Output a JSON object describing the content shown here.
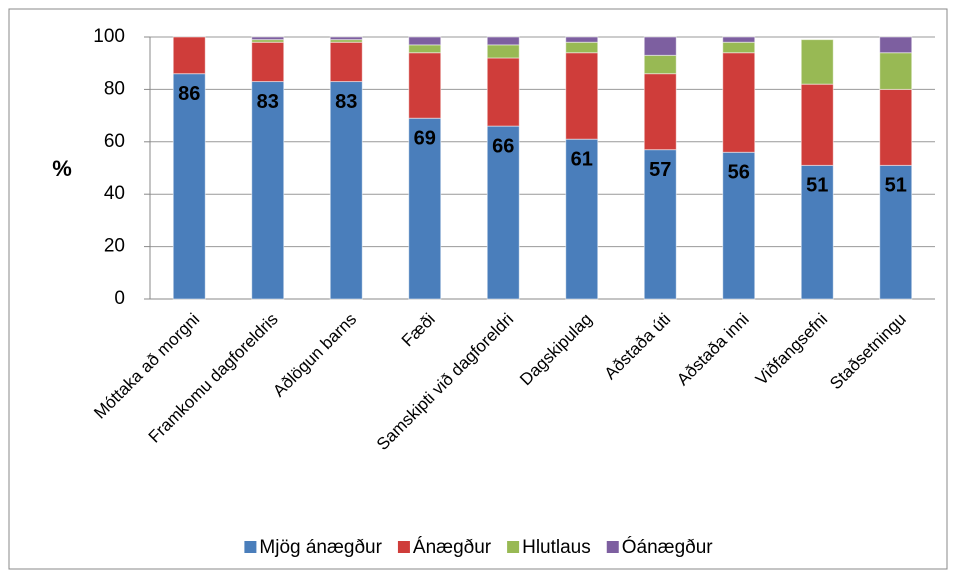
{
  "chart_data": {
    "type": "stacked_bar",
    "y_label": "%",
    "categories": [
      "Móttaka að morgni",
      "Framkomu dagforeldris",
      "Aðlögun barns",
      "Fæði",
      "Samskipti við dagforeldri",
      "Dagskipulag",
      "Aðstaða úti",
      "Aðstaða inni",
      "Viðfangsefni",
      "Staðsetningu"
    ],
    "series": [
      {
        "name": "Mjög ánægður",
        "color": "#4a7ebb",
        "values": [
          86,
          83,
          83,
          69,
          66,
          61,
          57,
          56,
          51,
          51
        ]
      },
      {
        "name": "Ánægður",
        "color": "#cf3d3a",
        "values": [
          14,
          15,
          15,
          25,
          26,
          33,
          29,
          38,
          31,
          29
        ]
      },
      {
        "name": "Hlutlaus",
        "color": "#98b954",
        "values": [
          0,
          1,
          1,
          3,
          5,
          4,
          7,
          4,
          17,
          14
        ]
      },
      {
        "name": "Óánægður",
        "color": "#7d5fa0",
        "values": [
          0,
          1,
          1,
          3,
          3,
          2,
          7,
          2,
          0,
          6
        ]
      }
    ],
    "data_labels_series": 0,
    "ylim": [
      0,
      100
    ],
    "yticks": [
      0,
      20,
      40,
      60,
      80,
      100
    ],
    "grid": true,
    "legend": "bottom"
  }
}
